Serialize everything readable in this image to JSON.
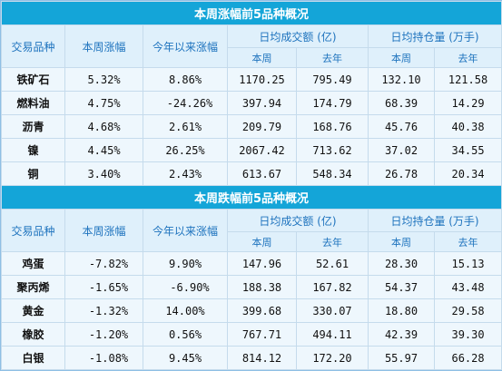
{
  "sections": [
    {
      "title": "本周涨幅前5品种概况",
      "headers": {
        "product": "交易品种",
        "weekly_change": "本周涨幅",
        "ytd_change": "今年以来涨幅",
        "volume_group": "日均成交额 (亿)",
        "oi_group": "日均持仓量 (万手)",
        "this_week": "本周",
        "last_year": "去年"
      },
      "rows": [
        {
          "name": "铁矿石",
          "weekly": "5.32%",
          "ytd": "8.86%",
          "vol_week": "1170.25",
          "vol_last": "795.49",
          "oi_week": "132.10",
          "oi_last": "121.58"
        },
        {
          "name": "燃料油",
          "weekly": "4.75%",
          "ytd": "-24.26%",
          "vol_week": "397.94",
          "vol_last": "174.79",
          "oi_week": "68.39",
          "oi_last": "14.29"
        },
        {
          "name": "沥青",
          "weekly": "4.68%",
          "ytd": "2.61%",
          "vol_week": "209.79",
          "vol_last": "168.76",
          "oi_week": "45.76",
          "oi_last": "40.38"
        },
        {
          "name": "镍",
          "weekly": "4.45%",
          "ytd": "26.25%",
          "vol_week": "2067.42",
          "vol_last": "713.62",
          "oi_week": "37.02",
          "oi_last": "34.55"
        },
        {
          "name": "铜",
          "weekly": "3.40%",
          "ytd": "2.43%",
          "vol_week": "613.67",
          "vol_last": "548.34",
          "oi_week": "26.78",
          "oi_last": "20.34"
        }
      ]
    },
    {
      "title": "本周跌幅前5品种概况",
      "headers": {
        "product": "交易品种",
        "weekly_change": "本周涨幅",
        "ytd_change": "今年以来涨幅",
        "volume_group": "日均成交额 (亿)",
        "oi_group": "日均持仓量 (万手)",
        "this_week": "本周",
        "last_year": "去年"
      },
      "rows": [
        {
          "name": "鸡蛋",
          "weekly": "-7.82%",
          "ytd": "9.90%",
          "vol_week": "147.96",
          "vol_last": "52.61",
          "oi_week": "28.30",
          "oi_last": "15.13"
        },
        {
          "name": "聚丙烯",
          "weekly": "-1.65%",
          "ytd": "-6.90%",
          "vol_week": "188.38",
          "vol_last": "167.82",
          "oi_week": "54.37",
          "oi_last": "43.48"
        },
        {
          "name": "黄金",
          "weekly": "-1.32%",
          "ytd": "14.00%",
          "vol_week": "399.68",
          "vol_last": "330.07",
          "oi_week": "18.80",
          "oi_last": "29.58"
        },
        {
          "name": "橡胶",
          "weekly": "-1.20%",
          "ytd": "0.56%",
          "vol_week": "767.71",
          "vol_last": "494.11",
          "oi_week": "42.39",
          "oi_last": "39.30"
        },
        {
          "name": "白银",
          "weekly": "-1.08%",
          "ytd": "9.45%",
          "vol_week": "814.12",
          "vol_last": "172.20",
          "oi_week": "55.97",
          "oi_last": "66.28"
        }
      ]
    }
  ]
}
